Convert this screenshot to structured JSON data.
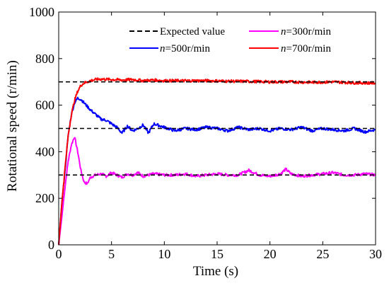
{
  "chart_data": {
    "type": "line",
    "xlabel": "Time (s)",
    "ylabel": "Rotational speed (r/min)",
    "xlim": [
      0,
      30
    ],
    "ylim": [
      0,
      1000
    ],
    "xticks": [
      "0",
      "5",
      "10",
      "15",
      "20",
      "25",
      "30"
    ],
    "yticks": [
      "0",
      "200",
      "400",
      "600",
      "800",
      "1000"
    ],
    "grid": false,
    "legend_position": "top-right",
    "series": [
      {
        "name": "Expected value",
        "color": "#000000",
        "style": "dashed",
        "segments": [
          {
            "x": [
              0,
              30
            ],
            "y": [
              300,
              300
            ]
          },
          {
            "x": [
              0,
              30
            ],
            "y": [
              500,
              500
            ]
          },
          {
            "x": [
              0,
              30
            ],
            "y": [
              700,
              700
            ]
          }
        ]
      },
      {
        "name_prefix": "n",
        "name_suffix": "=300r/min",
        "color": "#ff00ff",
        "style": "solid",
        "x": [
          0,
          0.3,
          0.6,
          0.9,
          1.2,
          1.5,
          1.8,
          2.1,
          2.4,
          2.7,
          3.0,
          3.5,
          4.0,
          4.5,
          5.0,
          5.5,
          6.0,
          6.5,
          7.0,
          7.5,
          8.0,
          9.0,
          10.0,
          11.0,
          12.0,
          13.0,
          14.0,
          15.0,
          16.0,
          17.0,
          18.0,
          19.0,
          20.0,
          21.0,
          21.5,
          22.0,
          23.0,
          24.0,
          25.0,
          26.0,
          27.0,
          28.0,
          29.0,
          30.0
        ],
        "y": [
          0,
          120,
          250,
          360,
          430,
          465,
          400,
          320,
          270,
          262,
          290,
          300,
          305,
          295,
          310,
          300,
          290,
          305,
          300,
          310,
          295,
          305,
          300,
          300,
          305,
          295,
          300,
          305,
          300,
          300,
          320,
          300,
          295,
          305,
          325,
          305,
          295,
          300,
          305,
          310,
          300,
          300,
          305,
          300
        ]
      },
      {
        "name_prefix": "n",
        "name_suffix": "=500r/min",
        "color": "#0000ff",
        "style": "solid",
        "x": [
          0,
          0.3,
          0.6,
          0.9,
          1.2,
          1.5,
          1.8,
          2.1,
          2.4,
          2.7,
          3.0,
          3.5,
          4.0,
          4.5,
          5.0,
          5.5,
          6.0,
          6.5,
          7.0,
          7.5,
          8.0,
          8.5,
          9.0,
          10.0,
          11.0,
          12.0,
          13.0,
          14.0,
          15.0,
          16.0,
          17.0,
          18.0,
          19.0,
          20.0,
          21.0,
          22.0,
          23.0,
          24.0,
          25.0,
          26.0,
          27.0,
          28.0,
          29.0,
          30.0
        ],
        "y": [
          0,
          180,
          320,
          470,
          560,
          610,
          630,
          625,
          610,
          595,
          580,
          560,
          540,
          535,
          520,
          505,
          480,
          510,
          490,
          500,
          515,
          480,
          520,
          505,
          490,
          500,
          495,
          505,
          500,
          490,
          505,
          495,
          500,
          490,
          500,
          495,
          505,
          490,
          500,
          495,
          490,
          500,
          485,
          495
        ]
      },
      {
        "name_prefix": "n",
        "name_suffix": "=700r/min",
        "color": "#ff0000",
        "style": "solid",
        "x": [
          0,
          0.3,
          0.6,
          0.9,
          1.2,
          1.5,
          1.8,
          2.1,
          2.4,
          2.7,
          3.0,
          3.5,
          4.0,
          5.0,
          6.0,
          7.0,
          8.0,
          9.0,
          10.0,
          12.0,
          14.0,
          16.0,
          18.0,
          20.0,
          22.0,
          24.0,
          26.0,
          28.0,
          30.0
        ],
        "y": [
          0,
          180,
          330,
          470,
          560,
          620,
          660,
          685,
          695,
          700,
          705,
          710,
          712,
          710,
          708,
          710,
          705,
          708,
          705,
          705,
          705,
          703,
          702,
          700,
          700,
          698,
          700,
          696,
          695
        ]
      }
    ]
  }
}
